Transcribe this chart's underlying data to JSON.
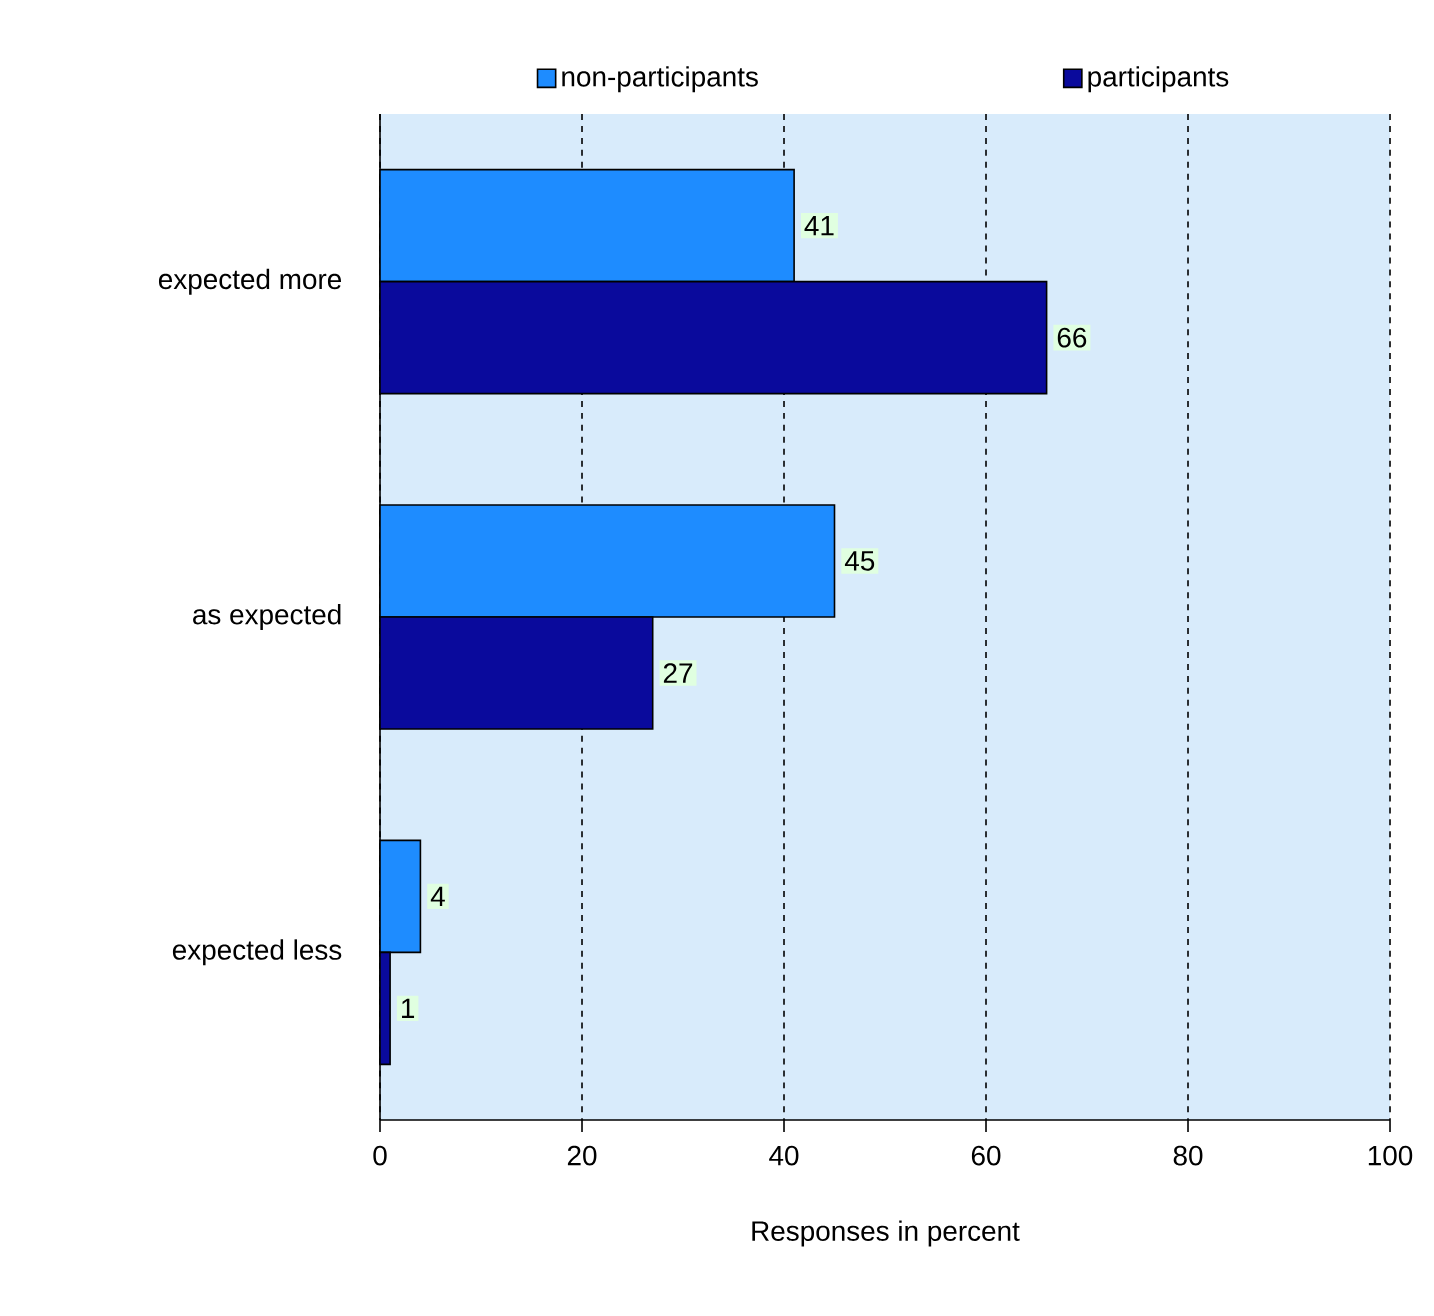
{
  "chart_data": {
    "type": "bar",
    "orientation": "horizontal",
    "xlabel": "Responses in percent",
    "categories": [
      "expected more",
      "as expected",
      "expected less"
    ],
    "series": [
      {
        "name": "non-participants",
        "color": "#1e8cff",
        "values": [
          41,
          45,
          4
        ]
      },
      {
        "name": "participants",
        "color": "#0a0a9c",
        "values": [
          66,
          27,
          1
        ]
      }
    ],
    "xlim": [
      0,
      100
    ],
    "xticks": [
      0,
      20,
      40,
      60,
      80,
      100
    ],
    "grid": "x",
    "legend": "top",
    "data_labels": true
  }
}
